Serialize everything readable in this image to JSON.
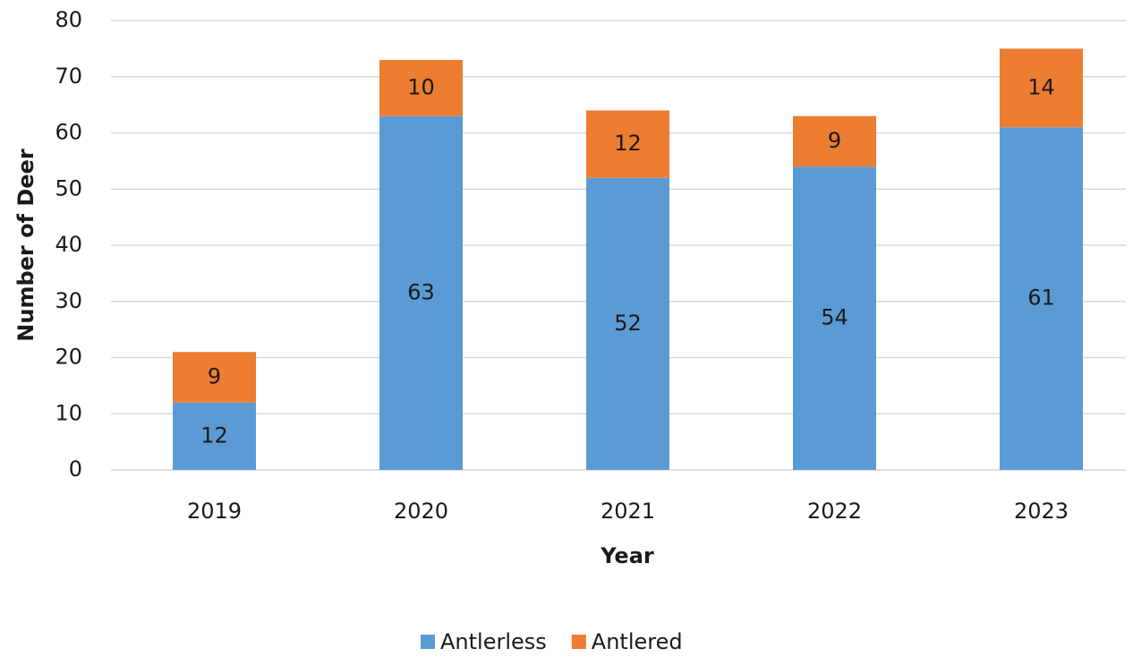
{
  "chart_data": {
    "type": "stacked_bar",
    "xlabel": "Year",
    "ylabel": "Number of Deer",
    "categories": [
      "2019",
      "2020",
      "2021",
      "2022",
      "2023"
    ],
    "series": [
      {
        "name": "Antlerless",
        "color": "#5b9bd5",
        "values": [
          12,
          63,
          52,
          54,
          61
        ]
      },
      {
        "name": "Antlered",
        "color": "#ed7d31",
        "values": [
          9,
          10,
          12,
          9,
          14
        ]
      }
    ],
    "ylim": [
      0,
      80
    ],
    "yticks": [
      0,
      10,
      20,
      30,
      40,
      50,
      60,
      70,
      80
    ],
    "grid": true,
    "legend": "bottom"
  }
}
